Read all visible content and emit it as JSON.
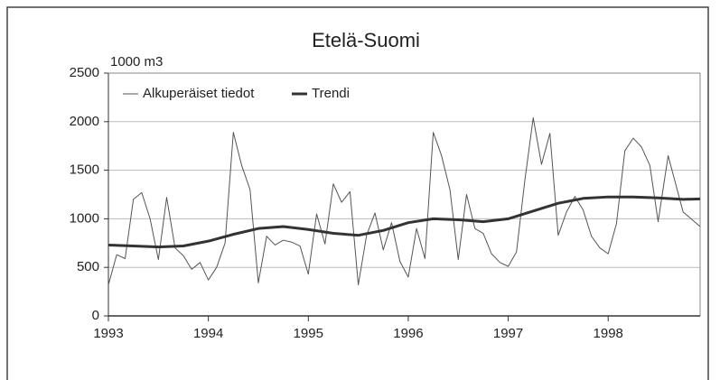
{
  "chart_data": {
    "type": "line",
    "title": "Etelä-Suomi",
    "y_label": "1000 m3",
    "xlim": [
      1993,
      1998.92
    ],
    "xticks": [
      1993,
      1994,
      1995,
      1996,
      1997,
      1998
    ],
    "ylim": [
      0,
      2500
    ],
    "yticks": [
      0,
      500,
      1000,
      1500,
      2000,
      2500
    ],
    "grid": true,
    "legend": "top-left",
    "series": [
      {
        "name": "Alkuperäiset tiedot",
        "color": "#555555",
        "x": [
          1993,
          1993.083,
          1993.167,
          1993.25,
          1993.333,
          1993.417,
          1993.5,
          1993.583,
          1993.667,
          1993.75,
          1993.833,
          1993.917,
          1994,
          1994.083,
          1994.167,
          1994.25,
          1994.333,
          1994.417,
          1994.5,
          1994.583,
          1994.667,
          1994.75,
          1994.833,
          1994.917,
          1995,
          1995.083,
          1995.167,
          1995.25,
          1995.333,
          1995.417,
          1995.5,
          1995.583,
          1995.667,
          1995.75,
          1995.833,
          1995.917,
          1996,
          1996.083,
          1996.167,
          1996.25,
          1996.333,
          1996.417,
          1996.5,
          1996.583,
          1996.667,
          1996.75,
          1996.833,
          1996.917,
          1997,
          1997.083,
          1997.167,
          1997.25,
          1997.333,
          1997.417,
          1997.5,
          1997.583,
          1997.667,
          1997.75,
          1997.833,
          1997.917,
          1998,
          1998.083,
          1998.167,
          1998.25,
          1998.333,
          1998.417,
          1998.5,
          1998.6,
          1998.75,
          1998.92
        ],
        "values": [
          320,
          630,
          590,
          1200,
          1270,
          1000,
          580,
          1220,
          700,
          620,
          480,
          550,
          370,
          500,
          750,
          1890,
          1550,
          1300,
          340,
          820,
          730,
          780,
          760,
          720,
          430,
          1050,
          740,
          1360,
          1170,
          1280,
          320,
          830,
          1060,
          680,
          960,
          560,
          400,
          900,
          590,
          1890,
          1650,
          1300,
          580,
          1250,
          900,
          850,
          640,
          550,
          510,
          660,
          1400,
          2040,
          1560,
          1880,
          830,
          1070,
          1230,
          1090,
          820,
          700,
          640,
          950,
          1700,
          1830,
          1740,
          1550,
          970,
          1650,
          1070,
          920
        ]
      },
      {
        "name": "Trendi",
        "color": "#333333",
        "x": [
          1993,
          1993.25,
          1993.5,
          1993.75,
          1994,
          1994.25,
          1994.5,
          1994.75,
          1995,
          1995.25,
          1995.5,
          1995.75,
          1996,
          1996.25,
          1996.5,
          1996.75,
          1997,
          1997.25,
          1997.5,
          1997.75,
          1998,
          1998.25,
          1998.5,
          1998.75,
          1998.92
        ],
        "values": [
          730,
          720,
          710,
          720,
          770,
          840,
          900,
          920,
          890,
          850,
          830,
          880,
          960,
          1000,
          990,
          970,
          1000,
          1080,
          1160,
          1210,
          1225,
          1225,
          1215,
          1200,
          1205
        ]
      }
    ]
  }
}
